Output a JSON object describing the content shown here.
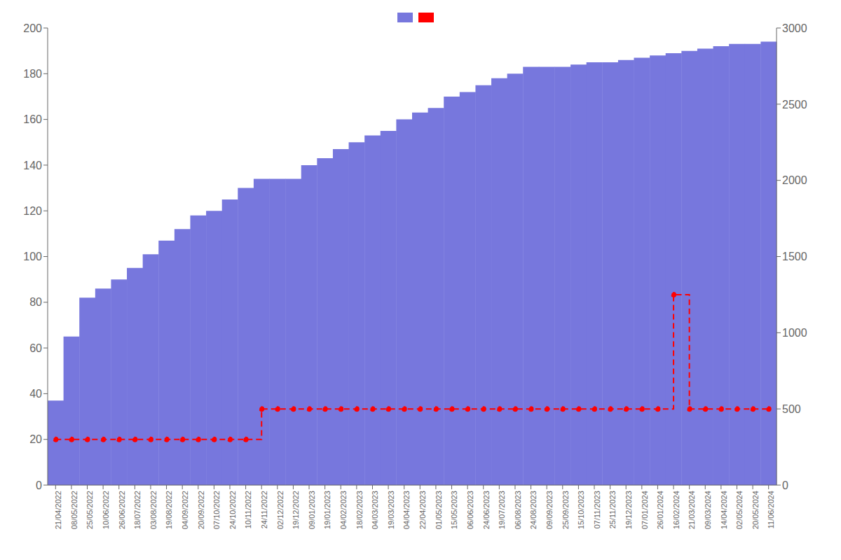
{
  "chart_data": {
    "type": "bar",
    "categories": [
      "21/04/2022",
      "08/05/2022",
      "25/05/2022",
      "10/06/2022",
      "26/06/2022",
      "18/07/2022",
      "03/08/2022",
      "19/08/2022",
      "04/09/2022",
      "20/09/2022",
      "07/10/2022",
      "24/10/2022",
      "10/11/2022",
      "24/11/2022",
      "02/12/2022",
      "19/12/2022",
      "09/01/2023",
      "19/01/2023",
      "04/02/2023",
      "18/02/2023",
      "04/03/2023",
      "19/03/2023",
      "04/04/2023",
      "22/04/2023",
      "01/05/2023",
      "15/05/2023",
      "06/06/2023",
      "24/06/2023",
      "19/07/2023",
      "06/08/2023",
      "24/08/2023",
      "09/09/2023",
      "25/09/2023",
      "15/10/2023",
      "07/11/2023",
      "25/11/2023",
      "19/12/2023",
      "07/01/2024",
      "26/01/2024",
      "16/02/2024",
      "21/03/2024",
      "09/03/2024",
      "14/04/2024",
      "02/05/2024",
      "20/05/2024",
      "11/06/2024"
    ],
    "series": [
      {
        "type": "bar",
        "color": "#7777dd",
        "values": [
          37,
          65,
          82,
          86,
          90,
          95,
          101,
          107,
          112,
          118,
          120,
          125,
          130,
          134,
          134,
          134,
          140,
          143,
          147,
          150,
          153,
          155,
          160,
          163,
          165,
          170,
          172,
          175,
          178,
          180,
          183,
          183,
          183,
          184,
          185,
          185,
          186,
          187,
          188,
          189,
          190,
          191,
          192,
          193,
          193,
          194
        ]
      },
      {
        "type": "step",
        "axis": "y2",
        "color": "#ff0000",
        "line_style": "dashed",
        "marker": "circle",
        "values": [
          300,
          300,
          300,
          300,
          300,
          300,
          300,
          300,
          300,
          300,
          300,
          300,
          300,
          500,
          500,
          500,
          500,
          500,
          500,
          500,
          500,
          500,
          500,
          500,
          500,
          500,
          500,
          500,
          500,
          500,
          500,
          500,
          500,
          500,
          500,
          500,
          500,
          500,
          500,
          1250,
          500,
          500,
          500,
          500,
          500,
          500
        ]
      }
    ],
    "ylim": [
      0,
      200
    ],
    "yticks": [
      0,
      20,
      40,
      60,
      80,
      100,
      120,
      140,
      160,
      180,
      200
    ],
    "y2lim": [
      0,
      3000
    ],
    "y2ticks": [
      0,
      500,
      1000,
      1500,
      2000,
      2500,
      3000
    ],
    "grid": false,
    "legend": "top"
  }
}
